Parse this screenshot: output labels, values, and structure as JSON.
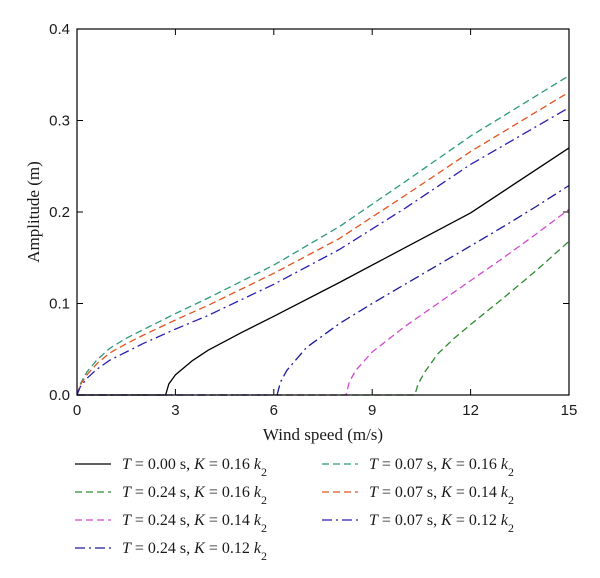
{
  "chart_data": {
    "type": "line",
    "xlabel": "Wind speed (m/s)",
    "ylabel": "Amplitude (m)",
    "xlim": [
      0,
      15
    ],
    "ylim": [
      0,
      0.4
    ],
    "xticks": [
      "0",
      "3",
      "6",
      "9",
      "12",
      "15"
    ],
    "yticks": [
      "0.0",
      "0.1",
      "0.2",
      "0.3",
      "0.4"
    ],
    "grid": false,
    "legend_position": "bottom",
    "series": [
      {
        "name": "T = 0.00 s, K = 0.16 k2",
        "legend": {
          "T": "0.00",
          "K": "0.16",
          "k": "k",
          "sub": "2"
        },
        "color": "#000000",
        "dash": "solid",
        "onset": 2.7,
        "x": [
          0,
          2.7,
          2.8,
          3.0,
          3.5,
          4,
          5,
          6,
          8,
          10,
          12,
          15
        ],
        "y": [
          0,
          0,
          0.012,
          0.022,
          0.037,
          0.049,
          0.068,
          0.086,
          0.123,
          0.161,
          0.199,
          0.27
        ]
      },
      {
        "name": "T = 0.24 s, K = 0.16 k2",
        "legend": {
          "T": "0.24",
          "K": "0.16",
          "k": "k",
          "sub": "2"
        },
        "color": "#2e8b2e",
        "dash": "dashed",
        "onset": 10.3,
        "x": [
          0,
          10.3,
          10.4,
          10.6,
          11,
          11.5,
          12,
          13,
          14,
          15
        ],
        "y": [
          0,
          0,
          0.012,
          0.025,
          0.045,
          0.062,
          0.077,
          0.106,
          0.136,
          0.168
        ]
      },
      {
        "name": "T = 0.24 s, K = 0.14 k2",
        "legend": {
          "T": "0.24",
          "K": "0.14",
          "k": "k",
          "sub": "2"
        },
        "color": "#d24bd2",
        "dash": "dashed",
        "onset": 8.2,
        "x": [
          0,
          8.2,
          8.3,
          8.5,
          9,
          10,
          11,
          12,
          13,
          14,
          15
        ],
        "y": [
          0,
          0,
          0.014,
          0.027,
          0.047,
          0.075,
          0.1,
          0.125,
          0.15,
          0.176,
          0.203
        ]
      },
      {
        "name": "T = 0.24 s, K = 0.12 k2",
        "legend": {
          "T": "0.24",
          "K": "0.12",
          "k": "k",
          "sub": "2"
        },
        "color": "#1a1a99",
        "dash": "dashdot",
        "onset": 6.1,
        "x": [
          0,
          6.1,
          6.2,
          6.4,
          7,
          8,
          9,
          10,
          11,
          12,
          13,
          14,
          15
        ],
        "y": [
          0,
          0,
          0.014,
          0.027,
          0.052,
          0.078,
          0.1,
          0.121,
          0.142,
          0.163,
          0.184,
          0.206,
          0.229
        ]
      },
      {
        "name": "T = 0.07 s, K = 0.16 k2",
        "legend": {
          "T": "0.07",
          "K": "0.16",
          "k": "k",
          "sub": "2"
        },
        "color": "#2a9a7a",
        "dash": "dashed",
        "onset": 0,
        "x": [
          0,
          0.1,
          0.3,
          0.6,
          1,
          1.5,
          2,
          3,
          4,
          6,
          8,
          10,
          12,
          15
        ],
        "y": [
          0,
          0.012,
          0.025,
          0.038,
          0.051,
          0.062,
          0.071,
          0.089,
          0.106,
          0.142,
          0.184,
          0.233,
          0.283,
          0.349
        ]
      },
      {
        "name": "T = 0.07 s, K = 0.14 k2",
        "legend": {
          "T": "0.07",
          "K": "0.14",
          "k": "k",
          "sub": "2"
        },
        "color": "#e2531e",
        "dash": "dashed",
        "onset": 0,
        "x": [
          0,
          0.1,
          0.3,
          0.6,
          1,
          1.5,
          2,
          3,
          4,
          6,
          8,
          10,
          12,
          15
        ],
        "y": [
          0,
          0.011,
          0.022,
          0.034,
          0.046,
          0.056,
          0.065,
          0.082,
          0.098,
          0.133,
          0.171,
          0.218,
          0.266,
          0.331
        ]
      },
      {
        "name": "T = 0.07 s, K = 0.12 k2",
        "legend": {
          "T": "0.07",
          "K": "0.12",
          "k": "k",
          "sub": "2"
        },
        "color": "#2a1fb5",
        "dash": "dashdot",
        "onset": 0,
        "x": [
          0,
          0.1,
          0.3,
          0.6,
          1,
          1.5,
          2,
          3,
          4,
          6,
          8,
          10,
          12,
          15
        ],
        "y": [
          0,
          0.009,
          0.018,
          0.028,
          0.038,
          0.047,
          0.056,
          0.072,
          0.087,
          0.121,
          0.159,
          0.204,
          0.252,
          0.314
        ]
      }
    ]
  }
}
